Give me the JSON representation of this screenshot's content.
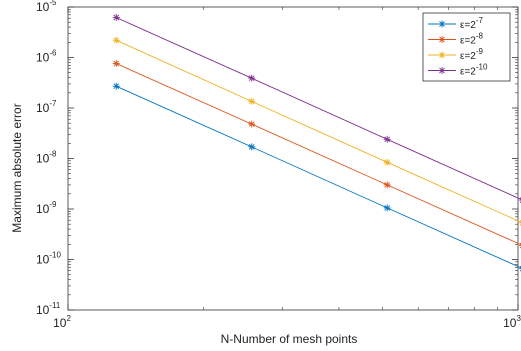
{
  "chart_data": {
    "type": "line",
    "xscale": "log",
    "yscale": "log",
    "xlim": [
      100,
      1000
    ],
    "ylim": [
      1e-11,
      1e-05
    ],
    "x_ticks": [
      {
        "value": 100,
        "base": "10",
        "exp": "2"
      },
      {
        "value": 1000,
        "base": "10",
        "exp": "3"
      }
    ],
    "y_ticks": [
      {
        "value": 1e-05,
        "base": "10",
        "exp": "-5"
      },
      {
        "value": 1e-06,
        "base": "10",
        "exp": "-6"
      },
      {
        "value": 1e-07,
        "base": "10",
        "exp": "-7"
      },
      {
        "value": 1e-08,
        "base": "10",
        "exp": "-8"
      },
      {
        "value": 1e-09,
        "base": "10",
        "exp": "-9"
      },
      {
        "value": 1e-10,
        "base": "10",
        "exp": "-10"
      },
      {
        "value": 1e-11,
        "base": "10",
        "exp": "-11"
      }
    ],
    "xlabel": "N-Number of mesh points",
    "ylabel": "Maximum absolute error",
    "legend_position": "top-right",
    "grid": false,
    "marker": "asterisk",
    "x": [
      128,
      256,
      512,
      1024
    ],
    "series": [
      {
        "name": "ε=2",
        "exp": "-7",
        "color": "#0072bd",
        "values": [
          2.7e-07,
          1.7e-08,
          1.05e-09,
          6.6e-11
        ]
      },
      {
        "name": "ε=2",
        "exp": "-8",
        "color": "#d95319",
        "values": [
          7.6e-07,
          4.8e-08,
          3e-09,
          1.9e-10
        ]
      },
      {
        "name": "ε=2",
        "exp": "-9",
        "color": "#edb120",
        "values": [
          2.2e-06,
          1.35e-07,
          8.4e-09,
          5.3e-10
        ]
      },
      {
        "name": "ε=2",
        "exp": "-10",
        "color": "#7e2f8e",
        "values": [
          6.2e-06,
          3.9e-07,
          2.4e-08,
          1.5e-09
        ]
      }
    ]
  }
}
